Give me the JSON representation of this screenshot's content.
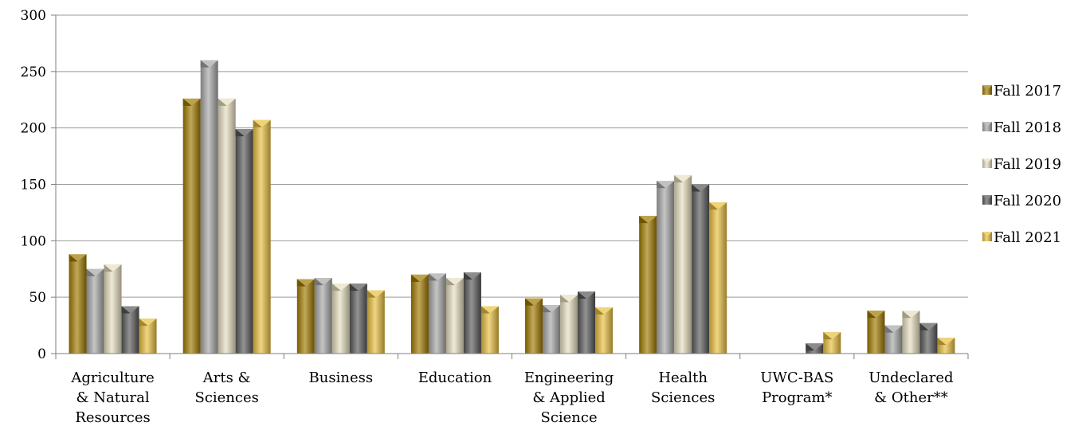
{
  "chart_data": {
    "type": "bar",
    "categories": [
      [
        "Agriculture",
        "& Natural",
        "Resources"
      ],
      [
        "Arts &",
        "Sciences"
      ],
      [
        "Business"
      ],
      [
        "Education"
      ],
      [
        "Engineering",
        "& Applied",
        "Science"
      ],
      [
        "Health",
        "Sciences"
      ],
      [
        "UWC-BAS",
        "Program*"
      ],
      [
        "Undeclared",
        "& Other**"
      ]
    ],
    "series": [
      {
        "name": "Fall 2017",
        "color": "#A07A00",
        "values": [
          88,
          226,
          66,
          70,
          49,
          122,
          0,
          38
        ]
      },
      {
        "name": "Fall 2018",
        "color": "#A6A6A6",
        "values": [
          75,
          260,
          67,
          71,
          43,
          153,
          0,
          25
        ]
      },
      {
        "name": "Fall 2019",
        "color": "#E6DFC0",
        "values": [
          79,
          226,
          62,
          67,
          52,
          158,
          0,
          38
        ]
      },
      {
        "name": "Fall 2020",
        "color": "#595959",
        "values": [
          42,
          199,
          62,
          72,
          55,
          150,
          9,
          27
        ]
      },
      {
        "name": "Fall 2021",
        "color": "#E8C040",
        "values": [
          31,
          207,
          56,
          42,
          41,
          134,
          19,
          14
        ]
      }
    ],
    "ylim": [
      0,
      300
    ],
    "yticks": [
      0,
      50,
      100,
      150,
      200,
      250,
      300
    ],
    "grid": true,
    "legend": "right"
  }
}
